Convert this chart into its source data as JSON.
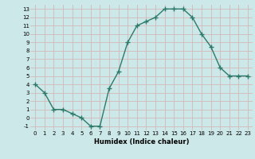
{
  "x": [
    0,
    1,
    2,
    3,
    4,
    5,
    6,
    7,
    8,
    9,
    10,
    11,
    12,
    13,
    14,
    15,
    16,
    17,
    18,
    19,
    20,
    21,
    22,
    23
  ],
  "y": [
    4,
    3,
    1,
    1,
    0.5,
    0,
    -1,
    -1,
    3.5,
    5.5,
    9,
    11,
    11.5,
    12,
    13,
    13,
    13,
    12,
    10,
    8.5,
    6,
    5,
    5,
    5
  ],
  "xlabel": "Humidex (Indice chaleur)",
  "ylim": [
    -1.5,
    13.5
  ],
  "xlim": [
    -0.5,
    23.5
  ],
  "yticks": [
    -1,
    0,
    1,
    2,
    3,
    4,
    5,
    6,
    7,
    8,
    9,
    10,
    11,
    12,
    13
  ],
  "xticks": [
    0,
    1,
    2,
    3,
    4,
    5,
    6,
    7,
    8,
    9,
    10,
    11,
    12,
    13,
    14,
    15,
    16,
    17,
    18,
    19,
    20,
    21,
    22,
    23
  ],
  "line_color": "#2d7a6a",
  "bg_color": "#cce8e8",
  "grid_color": "#d4b8b8",
  "marker": "+",
  "marker_size": 4,
  "linewidth": 1.0,
  "tick_fontsize": 5,
  "xlabel_fontsize": 6
}
